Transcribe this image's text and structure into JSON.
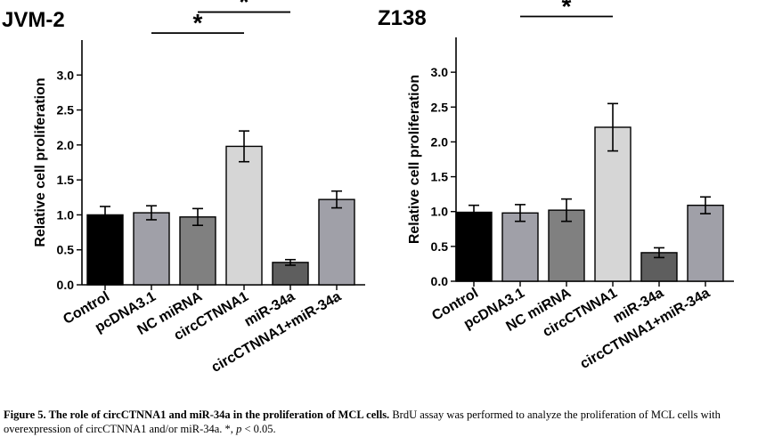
{
  "chart_data": [
    {
      "type": "bar",
      "title": "JVM-2",
      "ylabel": "Relative cell proliferation",
      "xlabel": "",
      "ylim": [
        0,
        3.5
      ],
      "yticks": [
        "0.0",
        "0.5",
        "1.0",
        "1.5",
        "2.0",
        "2.5",
        "3.0"
      ],
      "categories": [
        "Control",
        "pcDNA3.1",
        "NC miRNA",
        "circCTNNA1",
        "miR-34a",
        "circCTNNA1+miR-34a"
      ],
      "values": [
        1.0,
        1.03,
        0.97,
        1.98,
        0.32,
        1.22
      ],
      "errors": [
        0.12,
        0.1,
        0.12,
        0.22,
        0.04,
        0.12
      ],
      "colors": [
        "#000000",
        "#a0a0a8",
        "#808080",
        "#d6d6d6",
        "#5e5e5e",
        "#a0a0a8"
      ],
      "significance": [
        {
          "from": 1,
          "to": 3,
          "y": 3.6,
          "label": "*"
        },
        {
          "from": 2,
          "to": 4,
          "y": 3.9,
          "label": "*"
        },
        {
          "from": 4,
          "to": 5,
          "y": 4.2,
          "label": "*"
        }
      ]
    },
    {
      "type": "bar",
      "title": "Z138",
      "ylabel": "Relative cell proliferation",
      "xlabel": "",
      "ylim": [
        0,
        3.5
      ],
      "yticks": [
        "0.0",
        "0.5",
        "1.0",
        "1.5",
        "2.0",
        "2.5",
        "3.0"
      ],
      "categories": [
        "Control",
        "pcDNA3.1",
        "NC miRNA",
        "circCTNNA1",
        "miR-34a",
        "circCTNNA1+miR-34a"
      ],
      "values": [
        0.99,
        0.98,
        1.02,
        2.21,
        0.41,
        1.09
      ],
      "errors": [
        0.1,
        0.12,
        0.16,
        0.34,
        0.07,
        0.12
      ],
      "colors": [
        "#000000",
        "#a0a0a8",
        "#808080",
        "#d6d6d6",
        "#5e5e5e",
        "#a0a0a8"
      ],
      "significance": [
        {
          "from": 1,
          "to": 3,
          "y": 3.8,
          "label": "*"
        },
        {
          "from": 2,
          "to": 4,
          "y": 4.1,
          "label": "*"
        },
        {
          "from": 4,
          "to": 5,
          "y": 4.4,
          "label": "*"
        }
      ]
    }
  ],
  "caption": {
    "bold": "Figure 5. The role of circCTNNA1 and miR-34a in the proliferation of MCL cells.",
    "text_before_p": " BrdU assay was performed to analyze the proliferation of MCL cells with overexpression of circCTNNA1 and/or miR-34a. *, ",
    "p_symbol": "p",
    "text_after_p": " < 0.05."
  }
}
